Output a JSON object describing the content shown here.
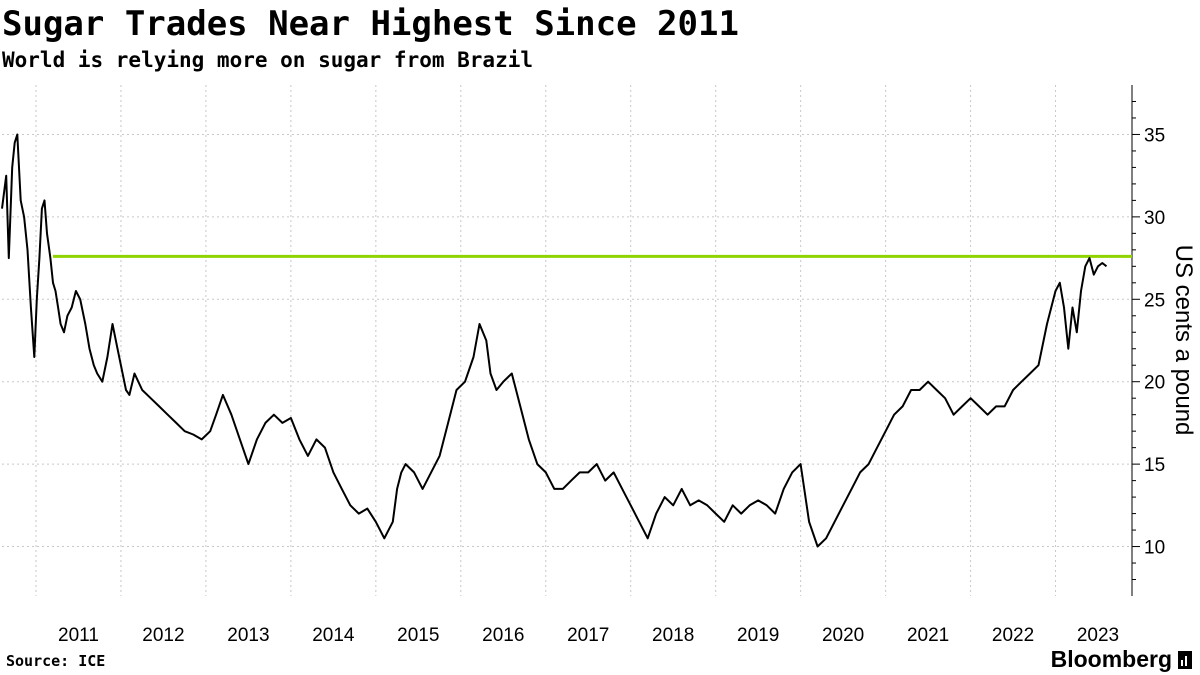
{
  "header": {
    "title": "Sugar Trades Near Highest Since 2011",
    "subtitle": "World is relying more on sugar from Brazil"
  },
  "footer": {
    "source": "Source: ICE",
    "brand": "Bloomberg"
  },
  "colors": {
    "line": "#000000",
    "reference_line": "#8fd400",
    "grid": "#c8c8c8"
  },
  "chart_data": {
    "type": "line",
    "title": "Sugar Trades Near Highest Since 2011",
    "subtitle": "World is relying more on sugar from Brazil",
    "ylabel": "US cents a pound",
    "y_axis_side": "right",
    "ylim": [
      7,
      38
    ],
    "xlim": [
      2010.6,
      2023.9
    ],
    "y_ticks": [
      10,
      15,
      20,
      25,
      30,
      35
    ],
    "x_ticks": [
      "2011",
      "2012",
      "2013",
      "2014",
      "2015",
      "2016",
      "2017",
      "2018",
      "2019",
      "2020",
      "2021",
      "2022",
      "2023"
    ],
    "grid": true,
    "reference_line": 27.6,
    "series": [
      {
        "x": [
          2010.6,
          2010.65,
          2010.68,
          2010.72,
          2010.75,
          2010.78,
          2010.82,
          2010.86,
          2010.9,
          2010.94,
          2010.98,
          2011.01,
          2011.04,
          2011.07,
          2011.1,
          2011.13,
          2011.17,
          2011.2,
          2011.23,
          2011.26,
          2011.29,
          2011.33,
          2011.37,
          2011.42,
          2011.47,
          2011.52,
          2011.58,
          2011.63,
          2011.68,
          2011.72,
          2011.78,
          2011.84,
          2011.9,
          2011.96,
          2012.02,
          2012.06,
          2012.1,
          2012.16,
          2012.25,
          2012.35,
          2012.45,
          2012.55,
          2012.65,
          2012.75,
          2012.85,
          2012.95,
          2013.05,
          2013.12,
          2013.2,
          2013.3,
          2013.4,
          2013.5,
          2013.6,
          2013.7,
          2013.8,
          2013.9,
          2014.0,
          2014.1,
          2014.2,
          2014.3,
          2014.4,
          2014.5,
          2014.6,
          2014.7,
          2014.8,
          2014.9,
          2015.0,
          2015.1,
          2015.2,
          2015.25,
          2015.3,
          2015.35,
          2015.45,
          2015.55,
          2015.65,
          2015.75,
          2015.85,
          2015.95,
          2016.05,
          2016.15,
          2016.22,
          2016.3,
          2016.35,
          2016.42,
          2016.5,
          2016.6,
          2016.7,
          2016.8,
          2016.9,
          2017.0,
          2017.1,
          2017.2,
          2017.3,
          2017.4,
          2017.5,
          2017.6,
          2017.7,
          2017.8,
          2017.9,
          2018.0,
          2018.1,
          2018.2,
          2018.3,
          2018.4,
          2018.5,
          2018.6,
          2018.7,
          2018.8,
          2018.9,
          2019.0,
          2019.1,
          2019.2,
          2019.3,
          2019.4,
          2019.5,
          2019.6,
          2019.7,
          2019.8,
          2019.9,
          2020.0,
          2020.1,
          2020.2,
          2020.3,
          2020.4,
          2020.5,
          2020.6,
          2020.7,
          2020.8,
          2020.9,
          2021.0,
          2021.1,
          2021.2,
          2021.3,
          2021.4,
          2021.5,
          2021.6,
          2021.7,
          2021.8,
          2021.9,
          2022.0,
          2022.1,
          2022.2,
          2022.3,
          2022.4,
          2022.5,
          2022.6,
          2022.7,
          2022.8,
          2022.9,
          2023.0,
          2023.05,
          2023.1,
          2023.15,
          2023.2,
          2023.25,
          2023.3,
          2023.35,
          2023.4,
          2023.45,
          2023.5,
          2023.55,
          2023.6
        ],
        "values": [
          30.5,
          32.5,
          27.5,
          33.0,
          34.5,
          35.0,
          31.0,
          30.0,
          28.0,
          24.5,
          21.5,
          25.0,
          27.5,
          30.5,
          31.0,
          29.0,
          27.5,
          26.0,
          25.5,
          24.5,
          23.5,
          23.0,
          24.0,
          24.5,
          25.5,
          25.0,
          23.5,
          22.0,
          21.0,
          20.5,
          20.0,
          21.5,
          23.5,
          22.0,
          20.5,
          19.5,
          19.2,
          20.5,
          19.5,
          19.0,
          18.5,
          18.0,
          17.5,
          17.0,
          16.8,
          16.5,
          17.0,
          18.0,
          19.2,
          18.0,
          16.5,
          15.0,
          16.5,
          17.5,
          18.0,
          17.5,
          17.8,
          16.5,
          15.5,
          16.5,
          16.0,
          14.5,
          13.5,
          12.5,
          12.0,
          12.3,
          11.5,
          10.5,
          11.5,
          13.5,
          14.5,
          15.0,
          14.5,
          13.5,
          14.5,
          15.5,
          17.5,
          19.5,
          20.0,
          21.5,
          23.5,
          22.5,
          20.5,
          19.5,
          20.0,
          20.5,
          18.5,
          16.5,
          15.0,
          14.5,
          13.5,
          13.5,
          14.0,
          14.5,
          14.5,
          15.0,
          14.0,
          14.5,
          13.5,
          12.5,
          11.5,
          10.5,
          12.0,
          13.0,
          12.5,
          13.5,
          12.5,
          12.8,
          12.5,
          12.0,
          11.5,
          12.5,
          12.0,
          12.5,
          12.8,
          12.5,
          12.0,
          13.5,
          14.5,
          15.0,
          11.5,
          10.0,
          10.5,
          11.5,
          12.5,
          13.5,
          14.5,
          15.0,
          16.0,
          17.0,
          18.0,
          18.5,
          19.5,
          19.5,
          20.0,
          19.5,
          19.0,
          18.0,
          18.5,
          19.0,
          18.5,
          18.0,
          18.5,
          18.5,
          19.5,
          20.0,
          20.5,
          21.0,
          23.5,
          25.5,
          26.0,
          24.5,
          22.0,
          24.5,
          23.0,
          25.5,
          27.0,
          27.5,
          26.5,
          27.0,
          27.2,
          27.0
        ]
      }
    ]
  }
}
